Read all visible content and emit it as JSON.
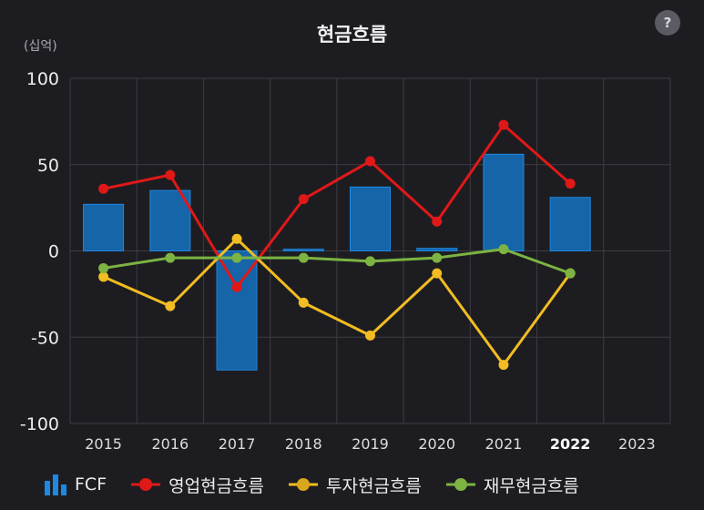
{
  "header": {
    "title": "현금흐름",
    "unit": "(십억)",
    "help_label": "?"
  },
  "colors": {
    "background": "#1d1d21",
    "grid": "#3c3c42",
    "fcf": "#1565a8",
    "fcf_edge": "#1e88e5",
    "operating": "#e01818",
    "investing": "#f2bc22",
    "financing": "#7cb342"
  },
  "chart_data": {
    "type": "bar+line",
    "title": "현금흐름",
    "unit": "(십억)",
    "categories": [
      "2015",
      "2016",
      "2017",
      "2018",
      "2019",
      "2020",
      "2021",
      "2022",
      "2023"
    ],
    "highlight_category": "2022",
    "ylim": [
      -100,
      100
    ],
    "yticks": [
      100,
      50,
      0,
      -50,
      -100
    ],
    "grid": true,
    "legend_position": "bottom",
    "series": [
      {
        "name": "FCF",
        "type": "bar",
        "color": "#1565a8",
        "values": [
          27,
          35,
          -69,
          1,
          37,
          1.5,
          56,
          31,
          null
        ]
      },
      {
        "name": "영업현금흐름",
        "type": "line",
        "color": "#e01818",
        "values": [
          36,
          44,
          -21,
          30,
          52,
          17,
          73,
          39,
          null
        ]
      },
      {
        "name": "투자현금흐름",
        "type": "line",
        "color": "#f2bc22",
        "values": [
          -15,
          -32,
          7,
          -30,
          -49,
          -13,
          -66,
          -13,
          null
        ]
      },
      {
        "name": "재무현금흐름",
        "type": "line",
        "color": "#7cb342",
        "values": [
          -10,
          -4,
          -4,
          -4,
          -6,
          -4,
          1,
          -13,
          null
        ]
      }
    ]
  },
  "legend": {
    "items": [
      {
        "label": "FCF",
        "icon": "bar-icon"
      },
      {
        "label": "영업현금흐름",
        "icon": "line-dot-icon"
      },
      {
        "label": "투자현금흐름",
        "icon": "line-dot-icon"
      },
      {
        "label": "재무현금흐름",
        "icon": "line-dot-icon"
      }
    ]
  }
}
